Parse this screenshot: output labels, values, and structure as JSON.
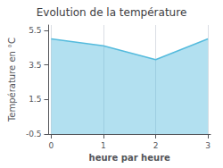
{
  "chart_data": {
    "type": "area",
    "title": "Evolution de la température",
    "xlabel": "heure par heure",
    "ylabel": "Température en °C",
    "x": [
      0,
      1,
      2,
      3
    ],
    "values": [
      5.0,
      4.6,
      3.8,
      5.0
    ],
    "color": "#55bbdd",
    "xlim": [
      -0.05,
      3.05
    ],
    "xticks": [
      0,
      1,
      2,
      3
    ],
    "ylim": [
      -0.5,
      5.8
    ],
    "yticks": [
      -0.5,
      1.5,
      3.5,
      5.5
    ],
    "grid": "x"
  }
}
